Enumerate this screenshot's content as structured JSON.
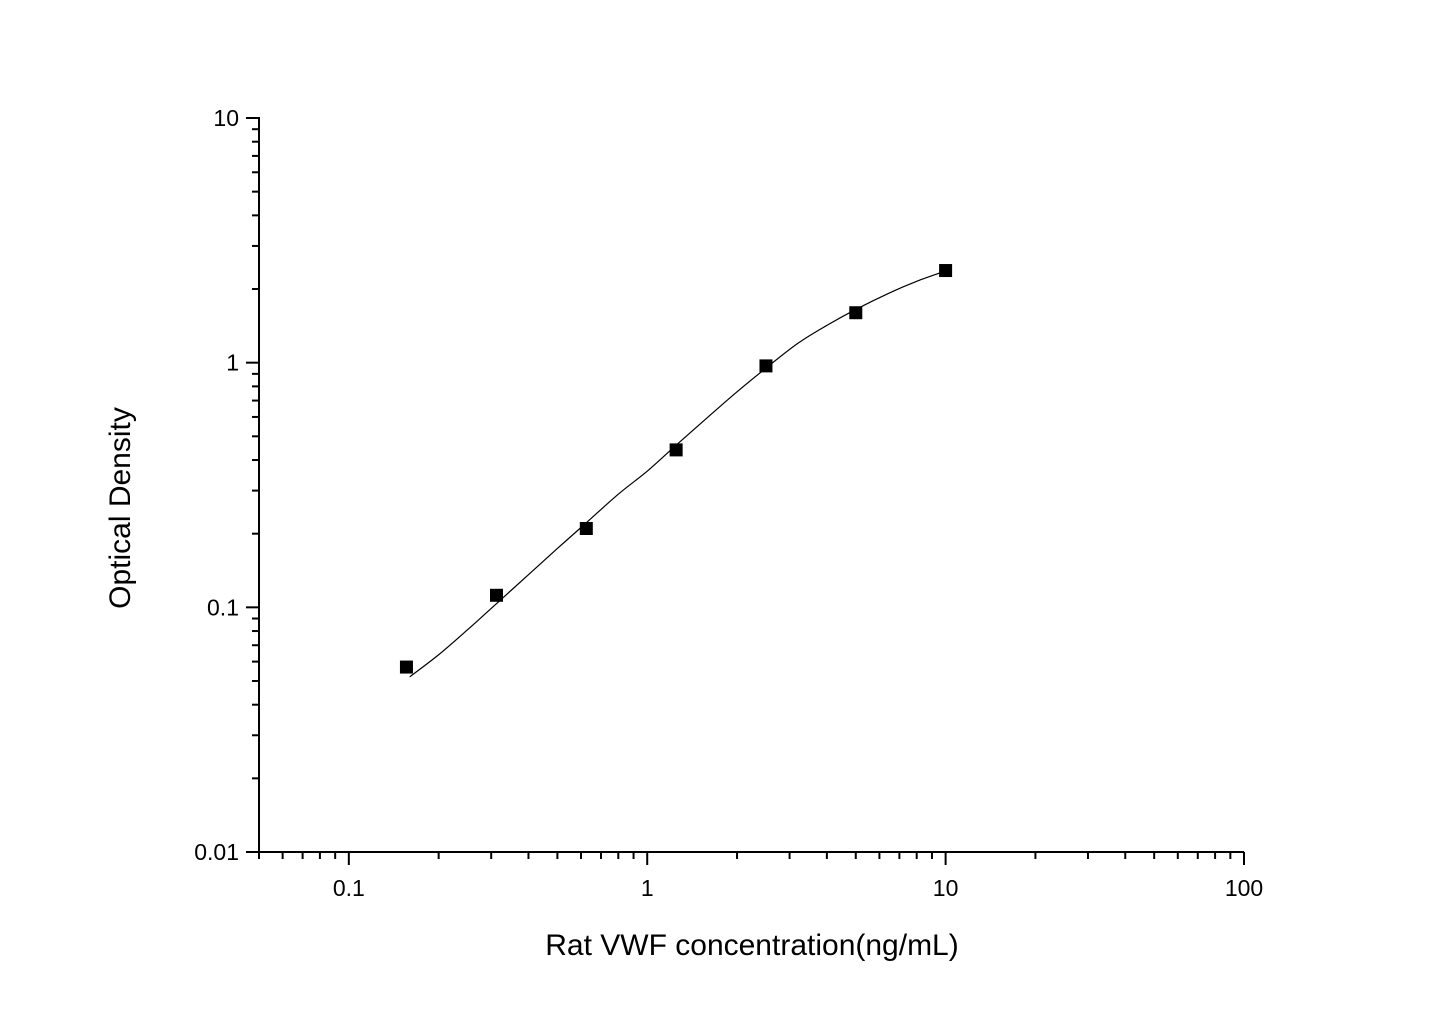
{
  "chart_data": {
    "type": "scatter",
    "title": "",
    "xlabel": "Rat VWF concentration(ng/mL)",
    "ylabel": "Optical Density",
    "xscale": "log",
    "yscale": "log",
    "xlim": [
      0.05,
      100
    ],
    "ylim": [
      0.01,
      10
    ],
    "x_ticks": [
      0.1,
      1,
      10,
      100
    ],
    "x_tick_labels": [
      "0.1",
      "1",
      "10",
      "100"
    ],
    "y_ticks": [
      0.01,
      0.1,
      1,
      10
    ],
    "y_tick_labels": [
      "0.01",
      "0.1",
      "1",
      "10"
    ],
    "grid": false,
    "legend": "none",
    "series": [
      {
        "marker": "square",
        "color": "#000000",
        "x": [
          0.156,
          0.3125,
          0.625,
          1.25,
          2.5,
          5,
          10
        ],
        "y": [
          0.057,
          0.112,
          0.21,
          0.44,
          0.97,
          1.6,
          2.38
        ]
      }
    ],
    "fit_curve": {
      "color": "#000000",
      "x": [
        0.16,
        0.2,
        0.25,
        0.3,
        0.4,
        0.5,
        0.6,
        0.8,
        1.0,
        1.25,
        1.6,
        2.0,
        2.5,
        3.2,
        4.0,
        5.0,
        6.5,
        8.0,
        10
      ],
      "y": [
        0.052,
        0.064,
        0.081,
        0.099,
        0.136,
        0.174,
        0.212,
        0.29,
        0.36,
        0.46,
        0.6,
        0.76,
        0.95,
        1.2,
        1.42,
        1.65,
        1.93,
        2.15,
        2.37
      ]
    }
  }
}
